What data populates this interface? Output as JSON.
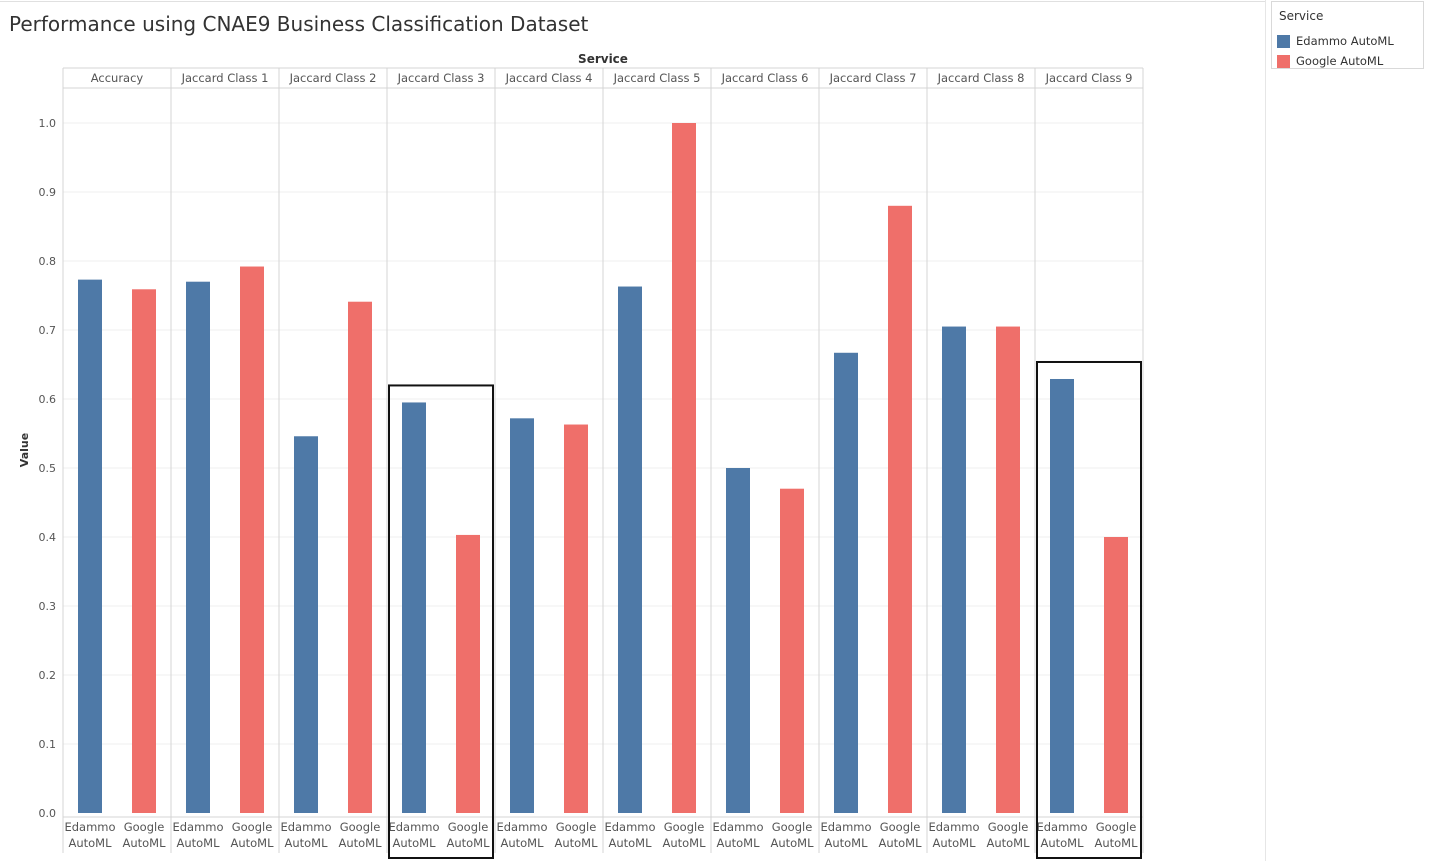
{
  "page": {
    "title": "Performance using CNAE9 Business Classification Dataset"
  },
  "legend": {
    "title": "Service",
    "items": [
      {
        "label": "Edammo AutoML",
        "color": "#4e79a7"
      },
      {
        "label": "Google AutoML",
        "color": "#ef6f6a"
      }
    ]
  },
  "chart_data": {
    "type": "bar",
    "title": "Performance using CNAE9 Business Classification Dataset",
    "column_header": "Service",
    "ylabel": "Value",
    "ylim": [
      0,
      1.05
    ],
    "yticks": [
      0.0,
      0.1,
      0.2,
      0.3,
      0.4,
      0.5,
      0.6,
      0.7,
      0.8,
      0.9,
      1.0
    ],
    "ytick_labels": [
      "0.0",
      "0.1",
      "0.2",
      "0.3",
      "0.4",
      "0.5",
      "0.6",
      "0.7",
      "0.8",
      "0.9",
      "1.0"
    ],
    "gridlines": true,
    "legend_position": "top-right",
    "categories": [
      "Accuracy",
      "Jaccard Class 1",
      "Jaccard Class 2",
      "Jaccard Class 3",
      "Jaccard Class 4",
      "Jaccard Class 5",
      "Jaccard Class 6",
      "Jaccard Class 7",
      "Jaccard Class 8",
      "Jaccard Class 9"
    ],
    "bar_labels": [
      [
        "Edammo",
        "AutoML"
      ],
      [
        "Google",
        "AutoML"
      ]
    ],
    "series": [
      {
        "name": "Edammo AutoML",
        "color": "#4e79a7",
        "values": [
          0.773,
          0.77,
          0.546,
          0.595,
          0.572,
          0.763,
          0.5,
          0.667,
          0.705,
          0.629
        ]
      },
      {
        "name": "Google AutoML",
        "color": "#ef6f6a",
        "values": [
          0.759,
          0.792,
          0.741,
          0.403,
          0.563,
          1.0,
          0.47,
          0.88,
          0.705,
          0.4
        ]
      }
    ],
    "highlighted_categories": [
      "Jaccard Class 3",
      "Jaccard Class 9"
    ]
  }
}
